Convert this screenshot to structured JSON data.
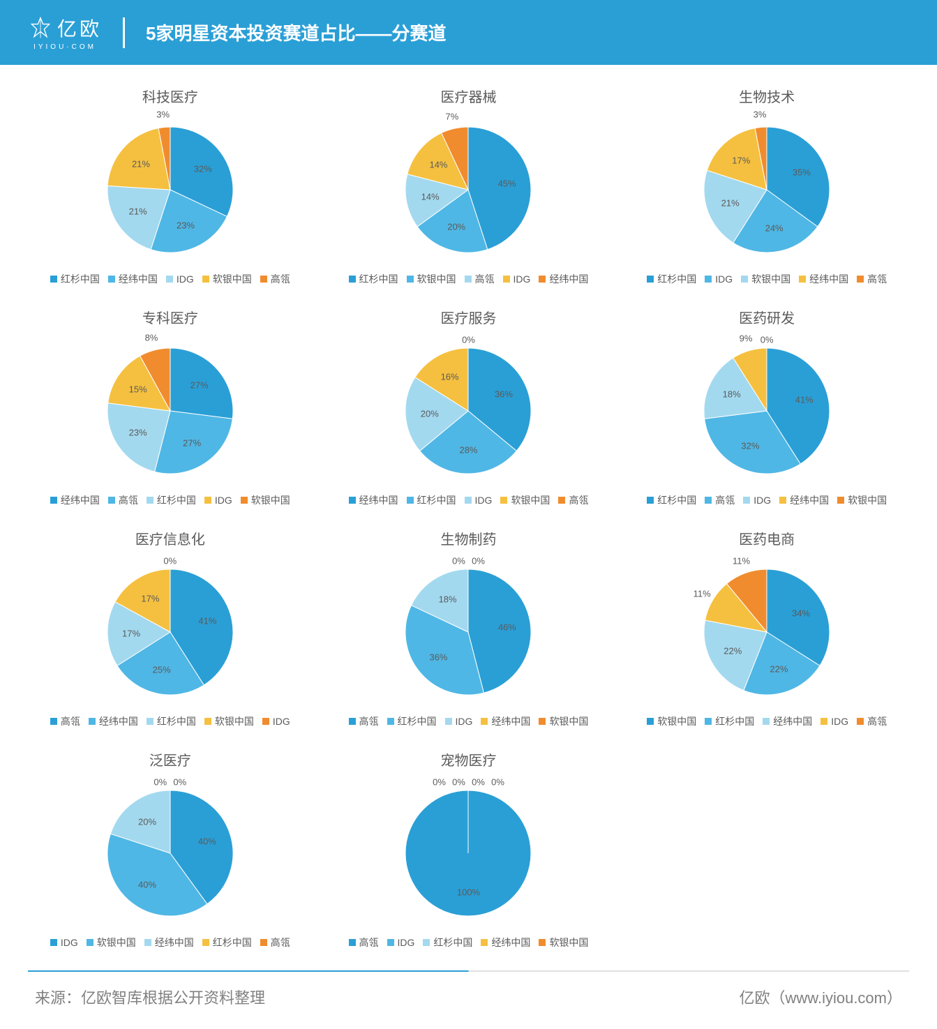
{
  "header": {
    "logo_main": "亿欧",
    "logo_sub": "IYIOU·COM",
    "title": "5家明星资本投资赛道占比——分赛道"
  },
  "palette": [
    "#2a9fd6",
    "#4fb7e5",
    "#a3d9ef",
    "#f5c040",
    "#f08c2e"
  ],
  "label_color": "#5a5a5a",
  "label_fontsize": 13,
  "title_fontsize": 20,
  "legend_fontsize": 14,
  "pie_start_angle": -90,
  "charts": [
    {
      "title": "科技医疗",
      "values": [
        32,
        23,
        21,
        21,
        3
      ],
      "labels": [
        "红杉中国",
        "经纬中国",
        "IDG",
        "软银中国",
        "高瓴"
      ]
    },
    {
      "title": "医疗器械",
      "values": [
        45,
        20,
        14,
        14,
        7
      ],
      "labels": [
        "红杉中国",
        "软银中国",
        "高瓴",
        "IDG",
        "经纬中国"
      ]
    },
    {
      "title": "生物技术",
      "values": [
        35,
        24,
        21,
        17,
        3
      ],
      "labels": [
        "红杉中国",
        "IDG",
        "软银中国",
        "经纬中国",
        "高瓴"
      ]
    },
    {
      "title": "专科医疗",
      "values": [
        27,
        27,
        23,
        15,
        8
      ],
      "labels": [
        "经纬中国",
        "高瓴",
        "红杉中国",
        "IDG",
        "软银中国"
      ]
    },
    {
      "title": "医疗服务",
      "values": [
        36,
        28,
        20,
        16,
        0
      ],
      "labels": [
        "经纬中国",
        "红杉中国",
        "IDG",
        "软银中国",
        "高瓴"
      ]
    },
    {
      "title": "医药研发",
      "values": [
        41,
        32,
        18,
        9,
        0
      ],
      "labels": [
        "红杉中国",
        "高瓴",
        "IDG",
        "经纬中国",
        "软银中国"
      ]
    },
    {
      "title": "医疗信息化",
      "values": [
        41,
        25,
        17,
        17,
        0
      ],
      "labels": [
        "高瓴",
        "经纬中国",
        "红杉中国",
        "软银中国",
        "IDG"
      ]
    },
    {
      "title": "生物制药",
      "values": [
        46,
        36,
        18,
        0,
        0
      ],
      "labels": [
        "高瓴",
        "红杉中国",
        "IDG",
        "经纬中国",
        "软银中国"
      ]
    },
    {
      "title": "医药电商",
      "values": [
        34,
        22,
        22,
        11,
        11
      ],
      "labels": [
        "软银中国",
        "红杉中国",
        "经纬中国",
        "IDG",
        "高瓴"
      ]
    },
    {
      "title": "泛医疗",
      "values": [
        40,
        40,
        20,
        0,
        0
      ],
      "labels": [
        "IDG",
        "软银中国",
        "经纬中国",
        "红杉中国",
        "高瓴"
      ]
    },
    {
      "title": "宠物医疗",
      "values": [
        100,
        0,
        0,
        0,
        0
      ],
      "labels": [
        "高瓴",
        "IDG",
        "红杉中国",
        "经纬中国",
        "软银中国"
      ]
    }
  ],
  "footer": {
    "source": "来源：亿欧智库根据公开资料整理",
    "brand": "亿欧（www.iyiou.com）"
  }
}
